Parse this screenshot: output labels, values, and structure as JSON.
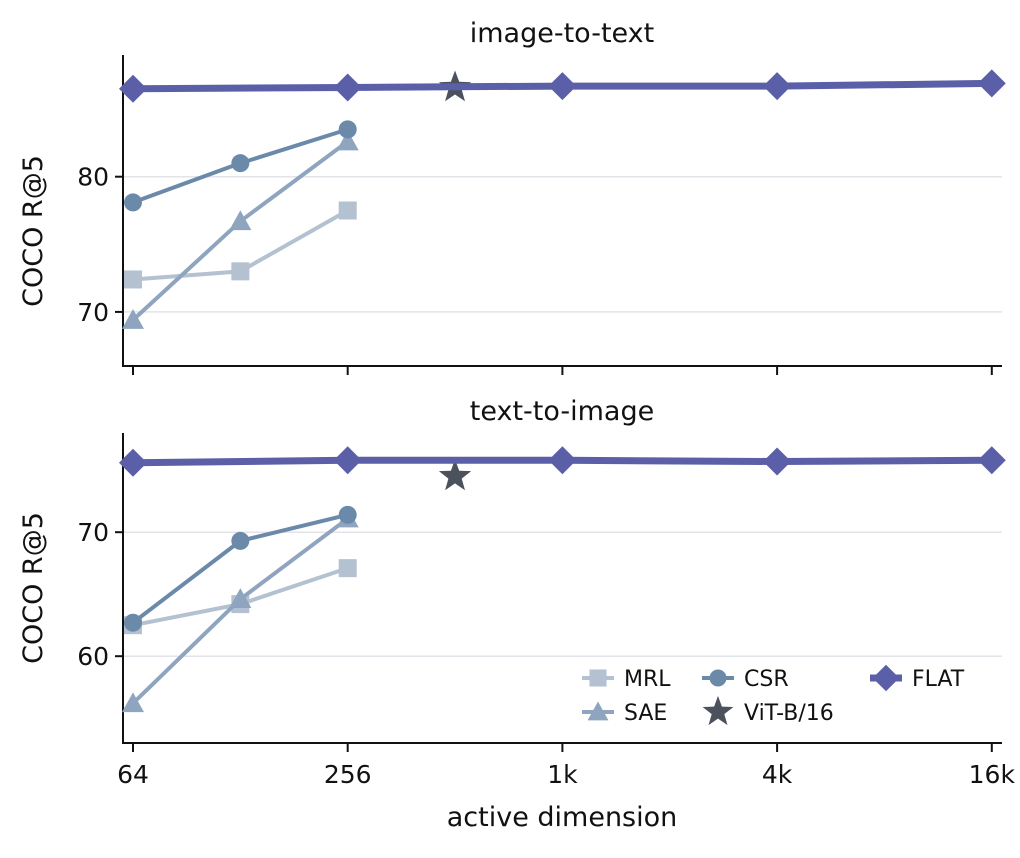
{
  "chart_data": [
    {
      "type": "line",
      "title": "image-to-text",
      "ylabel": "COCO R@5",
      "xlabel": "",
      "x_scale": "log2",
      "xlim": [
        60,
        17500
      ],
      "ylim": [
        66,
        89
      ],
      "y_ticks": [
        70,
        80
      ],
      "grid": "horizontal",
      "series": [
        {
          "name": "MRL",
          "color": "#b3c1d1",
          "marker": "square",
          "x": [
            64,
            128,
            256
          ],
          "y": [
            72.4,
            73.0,
            77.5
          ]
        },
        {
          "name": "SAE",
          "color": "#8fa5bf",
          "marker": "triangle",
          "x": [
            64,
            128,
            256
          ],
          "y": [
            69.4,
            76.7,
            82.6
          ]
        },
        {
          "name": "CSR",
          "color": "#6b8aaa",
          "marker": "circle",
          "x": [
            64,
            128,
            256
          ],
          "y": [
            78.1,
            81.0,
            83.5
          ]
        },
        {
          "name": "ViT-B/16",
          "color": "#4b525e",
          "marker": "star",
          "x": [
            512
          ],
          "y": [
            86.6
          ]
        },
        {
          "name": "FLAT",
          "color": "#5b5fa8",
          "marker": "diamond",
          "x": [
            64,
            256,
            1024,
            4096,
            16384
          ],
          "y": [
            86.5,
            86.6,
            86.7,
            86.7,
            86.9
          ]
        }
      ]
    },
    {
      "type": "line",
      "title": "text-to-image",
      "ylabel": "COCO R@5",
      "xlabel": "active dimension",
      "x_scale": "log2",
      "x_ticks": [
        64,
        256,
        1024,
        4096,
        16384
      ],
      "x_tick_labels": [
        "64",
        "256",
        "1k",
        "4k",
        "16k"
      ],
      "xlim": [
        60,
        17500
      ],
      "ylim": [
        53,
        78
      ],
      "y_ticks": [
        60,
        70
      ],
      "grid": "horizontal",
      "legend": "bottom-right",
      "series": [
        {
          "name": "MRL",
          "color": "#b3c1d1",
          "marker": "square",
          "x": [
            64,
            128,
            256
          ],
          "y": [
            62.5,
            64.2,
            67.1
          ]
        },
        {
          "name": "SAE",
          "color": "#8fa5bf",
          "marker": "triangle",
          "x": [
            64,
            128,
            256
          ],
          "y": [
            56.2,
            64.6,
            71.1
          ]
        },
        {
          "name": "CSR",
          "color": "#6b8aaa",
          "marker": "circle",
          "x": [
            64,
            128,
            256
          ],
          "y": [
            62.7,
            69.3,
            71.4
          ]
        },
        {
          "name": "ViT-B/16",
          "color": "#4b525e",
          "marker": "star",
          "x": [
            512
          ],
          "y": [
            74.5
          ]
        },
        {
          "name": "FLAT",
          "color": "#5b5fa8",
          "marker": "diamond",
          "x": [
            64,
            256,
            1024,
            4096,
            16384
          ],
          "y": [
            75.6,
            75.8,
            75.8,
            75.7,
            75.8
          ]
        }
      ]
    }
  ]
}
